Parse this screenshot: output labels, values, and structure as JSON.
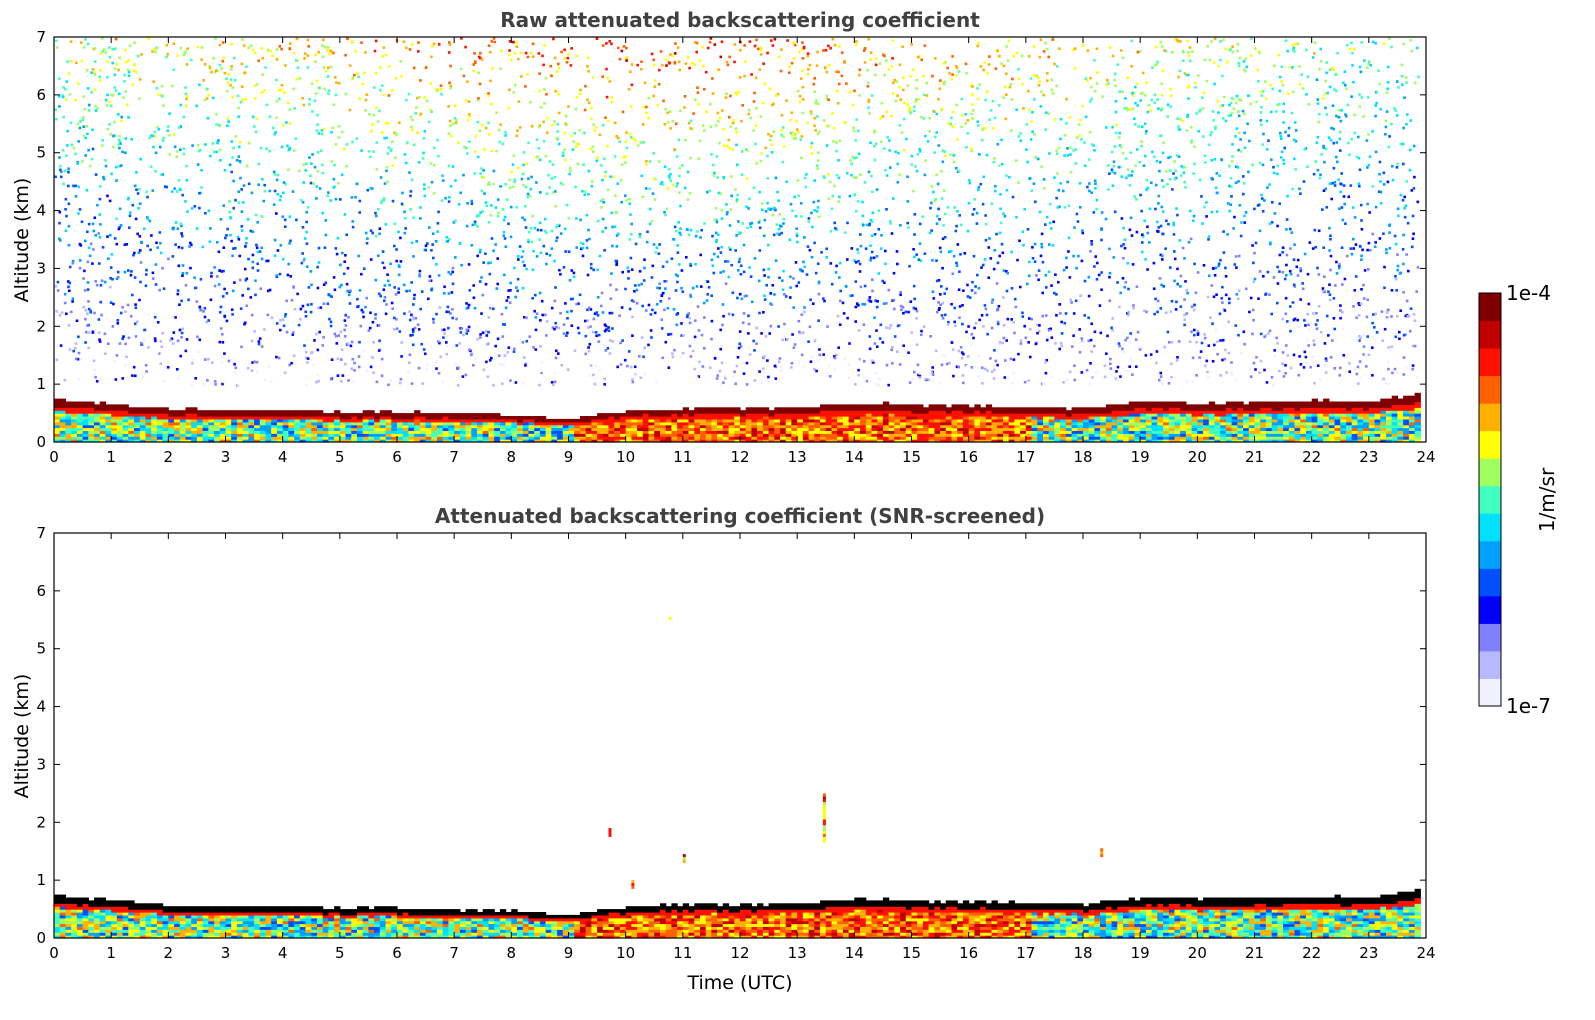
{
  "chart_data": [
    {
      "type": "heatmap",
      "title": "Raw attenuated backscattering coefficient",
      "xlabel": "",
      "ylabel": "Altitude (km)",
      "xlim": [
        0,
        24
      ],
      "ylim": [
        0,
        7
      ],
      "x_ticks": [
        "0",
        "1",
        "2",
        "3",
        "4",
        "5",
        "6",
        "7",
        "8",
        "9",
        "10",
        "11",
        "12",
        "13",
        "14",
        "15",
        "16",
        "17",
        "18",
        "19",
        "20",
        "21",
        "22",
        "23",
        "24"
      ],
      "y_ticks": [
        "0",
        "1",
        "2",
        "3",
        "4",
        "5",
        "6",
        "7"
      ],
      "data_end_hour": 23.85,
      "boundary_layer_top_km": [
        0.72,
        0.63,
        0.55,
        0.52,
        0.52,
        0.5,
        0.49,
        0.47,
        0.44,
        0.38,
        0.52,
        0.55,
        0.56,
        0.57,
        0.66,
        0.62,
        0.6,
        0.58,
        0.55,
        0.68,
        0.65,
        0.67,
        0.69,
        0.68,
        0.82
      ],
      "screened": false
    },
    {
      "type": "heatmap",
      "title": "Attenuated backscattering coefficient (SNR-screened)",
      "xlabel": "Time (UTC)",
      "ylabel": "Altitude (km)",
      "xlim": [
        0,
        24
      ],
      "ylim": [
        0,
        7
      ],
      "x_ticks": [
        "0",
        "1",
        "2",
        "3",
        "4",
        "5",
        "6",
        "7",
        "8",
        "9",
        "10",
        "11",
        "12",
        "13",
        "14",
        "15",
        "16",
        "17",
        "18",
        "19",
        "20",
        "21",
        "22",
        "23",
        "24"
      ],
      "y_ticks": [
        "0",
        "1",
        "2",
        "3",
        "4",
        "5",
        "6",
        "7"
      ],
      "data_end_hour": 23.85,
      "boundary_layer_top_km": [
        0.72,
        0.63,
        0.55,
        0.52,
        0.52,
        0.5,
        0.49,
        0.47,
        0.44,
        0.38,
        0.52,
        0.55,
        0.56,
        0.57,
        0.66,
        0.62,
        0.6,
        0.58,
        0.55,
        0.68,
        0.65,
        0.67,
        0.69,
        0.68,
        0.82
      ],
      "screened": true,
      "cloud_features": [
        {
          "t": 9.7,
          "alt": [
            1.8,
            1.95
          ]
        },
        {
          "t": 10.1,
          "alt": [
            0.9,
            1.05
          ]
        },
        {
          "t": 11.0,
          "alt": [
            1.35,
            1.5
          ]
        },
        {
          "t": 13.45,
          "alt": [
            1.7,
            2.5
          ]
        },
        {
          "t": 18.3,
          "alt": [
            1.45,
            1.6
          ]
        },
        {
          "t": 10.75,
          "alt": [
            5.55,
            5.6
          ]
        }
      ]
    }
  ],
  "colorbar": {
    "label": "1/m/sr",
    "max_label": "1e-4",
    "min_label": "1e-7",
    "scale": "log",
    "colormap": "jet",
    "colors": [
      "#f0f0ff",
      "#b8b8ff",
      "#8080ff",
      "#0000ff",
      "#0050ff",
      "#00a0ff",
      "#00e0ff",
      "#40ffc0",
      "#a0ff60",
      "#ffff00",
      "#ffb000",
      "#ff6000",
      "#ff1000",
      "#c00000",
      "#7f0000"
    ]
  }
}
